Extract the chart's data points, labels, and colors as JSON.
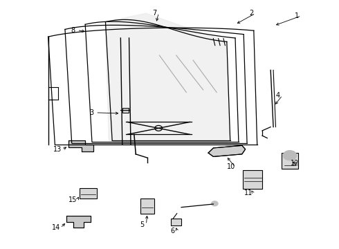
{
  "background_color": "#ffffff",
  "line_color": "#000000",
  "label_color": "#000000",
  "figsize": [
    4.9,
    3.6
  ],
  "dpi": 100
}
